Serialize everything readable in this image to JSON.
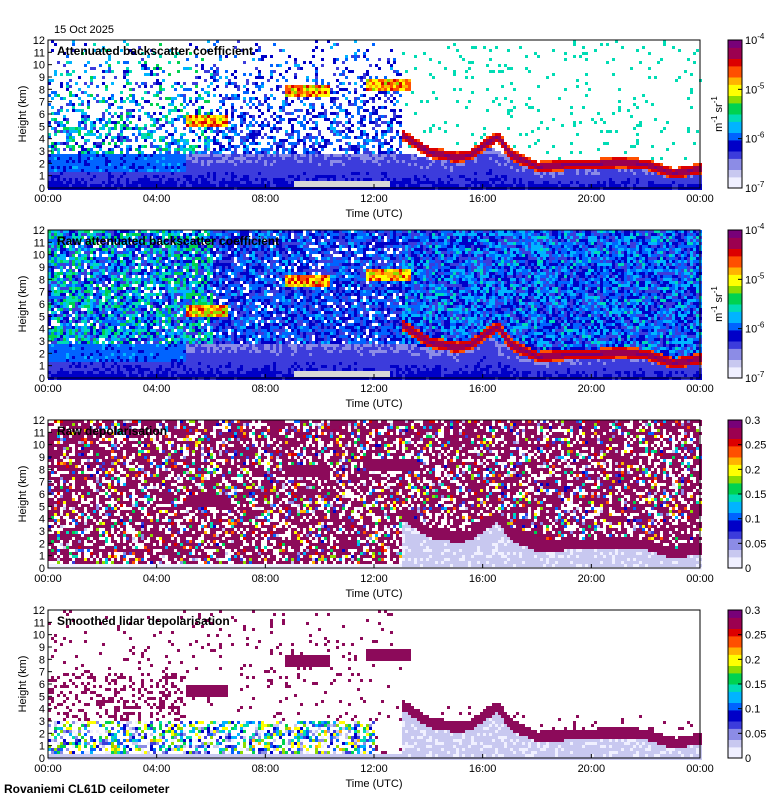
{
  "date_label": "15 Oct 2025",
  "footer": "Rovaniemi CL61D ceilometer",
  "colors": {
    "ramp": [
      "#f0f0ff",
      "#c8c8f0",
      "#8c8ce6",
      "#3c3cdc",
      "#0000c8",
      "#0064ff",
      "#00b4ff",
      "#00dcb4",
      "#00d250",
      "#8cdc00",
      "#ffff00",
      "#ffb400",
      "#ff5000",
      "#dc0000",
      "#9c0050",
      "#780078"
    ],
    "no_data": "#d8d8d8",
    "depol_noise": "#8c0a5a"
  },
  "chart_data": [
    {
      "type": "heatmap",
      "title": "Attenuated backscatter coefficient",
      "xlabel": "Time (UTC)",
      "ylabel": "Height (km)",
      "x_ticks": [
        "00:00",
        "04:00",
        "08:00",
        "12:00",
        "16:00",
        "20:00",
        "00:00"
      ],
      "x_range_h": [
        0,
        24
      ],
      "y_ticks": [
        "0",
        "1",
        "2",
        "3",
        "4",
        "5",
        "6",
        "7",
        "8",
        "9",
        "10",
        "11",
        "12"
      ],
      "y_range_km": [
        0,
        12
      ],
      "colorbar": {
        "scale": "log",
        "ticks": [
          "10-7",
          "10-6",
          "10-5",
          "10-4"
        ],
        "tick_labels": [
          {
            "base": "10",
            "exp": "-7"
          },
          {
            "base": "10",
            "exp": "-6"
          },
          {
            "base": "10",
            "exp": "-5"
          },
          {
            "base": "10",
            "exp": "-4"
          }
        ],
        "unit": {
          "a": "m",
          "a_exp": "-1",
          "b": "sr",
          "b_exp": "-1"
        }
      },
      "features": {
        "boundary_layer_top_km": [
          [
            0,
            3.0
          ],
          [
            13,
            3.0
          ],
          [
            14,
            2.5
          ],
          [
            15,
            2.3
          ],
          [
            16,
            3.8
          ],
          [
            17,
            2.5
          ],
          [
            18,
            1.5
          ],
          [
            19,
            1.7
          ],
          [
            20,
            1.8
          ],
          [
            21,
            2.0
          ],
          [
            22,
            1.8
          ],
          [
            23,
            1.2
          ],
          [
            24,
            1.5
          ]
        ],
        "cloud_layer_km": [
          [
            13.0,
            4.4
          ],
          [
            14.0,
            3.0
          ],
          [
            15.0,
            2.6
          ],
          [
            15.5,
            2.8
          ],
          [
            16.0,
            3.6
          ],
          [
            16.5,
            4.3
          ],
          [
            17.0,
            2.8
          ],
          [
            18.0,
            1.8
          ],
          [
            19.0,
            2.0
          ],
          [
            20.0,
            2.0
          ],
          [
            21.0,
            2.2
          ],
          [
            22.0,
            2.0
          ],
          [
            23.0,
            1.3
          ],
          [
            24.0,
            1.7
          ]
        ],
        "elevated_clouds_km": [
          [
            5.8,
            5.5
          ],
          [
            9.5,
            8.0
          ],
          [
            12.5,
            8.5
          ]
        ]
      }
    },
    {
      "type": "heatmap",
      "title": "Raw attenuated backscatter coefficient",
      "xlabel": "Time (UTC)",
      "ylabel": "Height (km)",
      "x_ticks": [
        "00:00",
        "04:00",
        "08:00",
        "12:00",
        "16:00",
        "20:00",
        "00:00"
      ],
      "x_range_h": [
        0,
        24
      ],
      "y_ticks": [
        "0",
        "1",
        "2",
        "3",
        "4",
        "5",
        "6",
        "7",
        "8",
        "9",
        "10",
        "11",
        "12"
      ],
      "y_range_km": [
        0,
        12
      ],
      "colorbar": {
        "scale": "log",
        "ticks": [
          "10-7",
          "10-6",
          "10-5",
          "10-4"
        ],
        "tick_labels": [
          {
            "base": "10",
            "exp": "-7"
          },
          {
            "base": "10",
            "exp": "-6"
          },
          {
            "base": "10",
            "exp": "-5"
          },
          {
            "base": "10",
            "exp": "-4"
          }
        ],
        "unit": {
          "a": "m",
          "a_exp": "-1",
          "b": "sr",
          "b_exp": "-1"
        }
      }
    },
    {
      "type": "heatmap",
      "title": "Raw depolarisation",
      "xlabel": "Time (UTC)",
      "ylabel": "Height (km)",
      "x_ticks": [
        "00:00",
        "04:00",
        "08:00",
        "12:00",
        "16:00",
        "20:00",
        "00:00"
      ],
      "x_range_h": [
        0,
        24
      ],
      "y_ticks": [
        "0",
        "1",
        "2",
        "3",
        "4",
        "5",
        "6",
        "7",
        "8",
        "9",
        "10",
        "11",
        "12"
      ],
      "y_range_km": [
        0,
        12
      ],
      "colorbar": {
        "scale": "linear",
        "range": [
          0,
          0.3
        ],
        "ticks": [
          "0",
          "0.05",
          "0.1",
          "0.15",
          "0.2",
          "0.25",
          "0.3"
        ]
      }
    },
    {
      "type": "heatmap",
      "title": "Smoothed lidar depolarisation",
      "xlabel": "Time (UTC)",
      "ylabel": "Height (km)",
      "x_ticks": [
        "00:00",
        "04:00",
        "08:00",
        "12:00",
        "16:00",
        "20:00",
        "00:00"
      ],
      "x_range_h": [
        0,
        24
      ],
      "y_ticks": [
        "0",
        "1",
        "2",
        "3",
        "4",
        "5",
        "6",
        "7",
        "8",
        "9",
        "10",
        "11",
        "12"
      ],
      "y_range_km": [
        0,
        12
      ],
      "colorbar": {
        "scale": "linear",
        "range": [
          0,
          0.3
        ],
        "ticks": [
          "0",
          "0.05",
          "0.1",
          "0.15",
          "0.2",
          "0.25",
          "0.3"
        ]
      }
    }
  ]
}
